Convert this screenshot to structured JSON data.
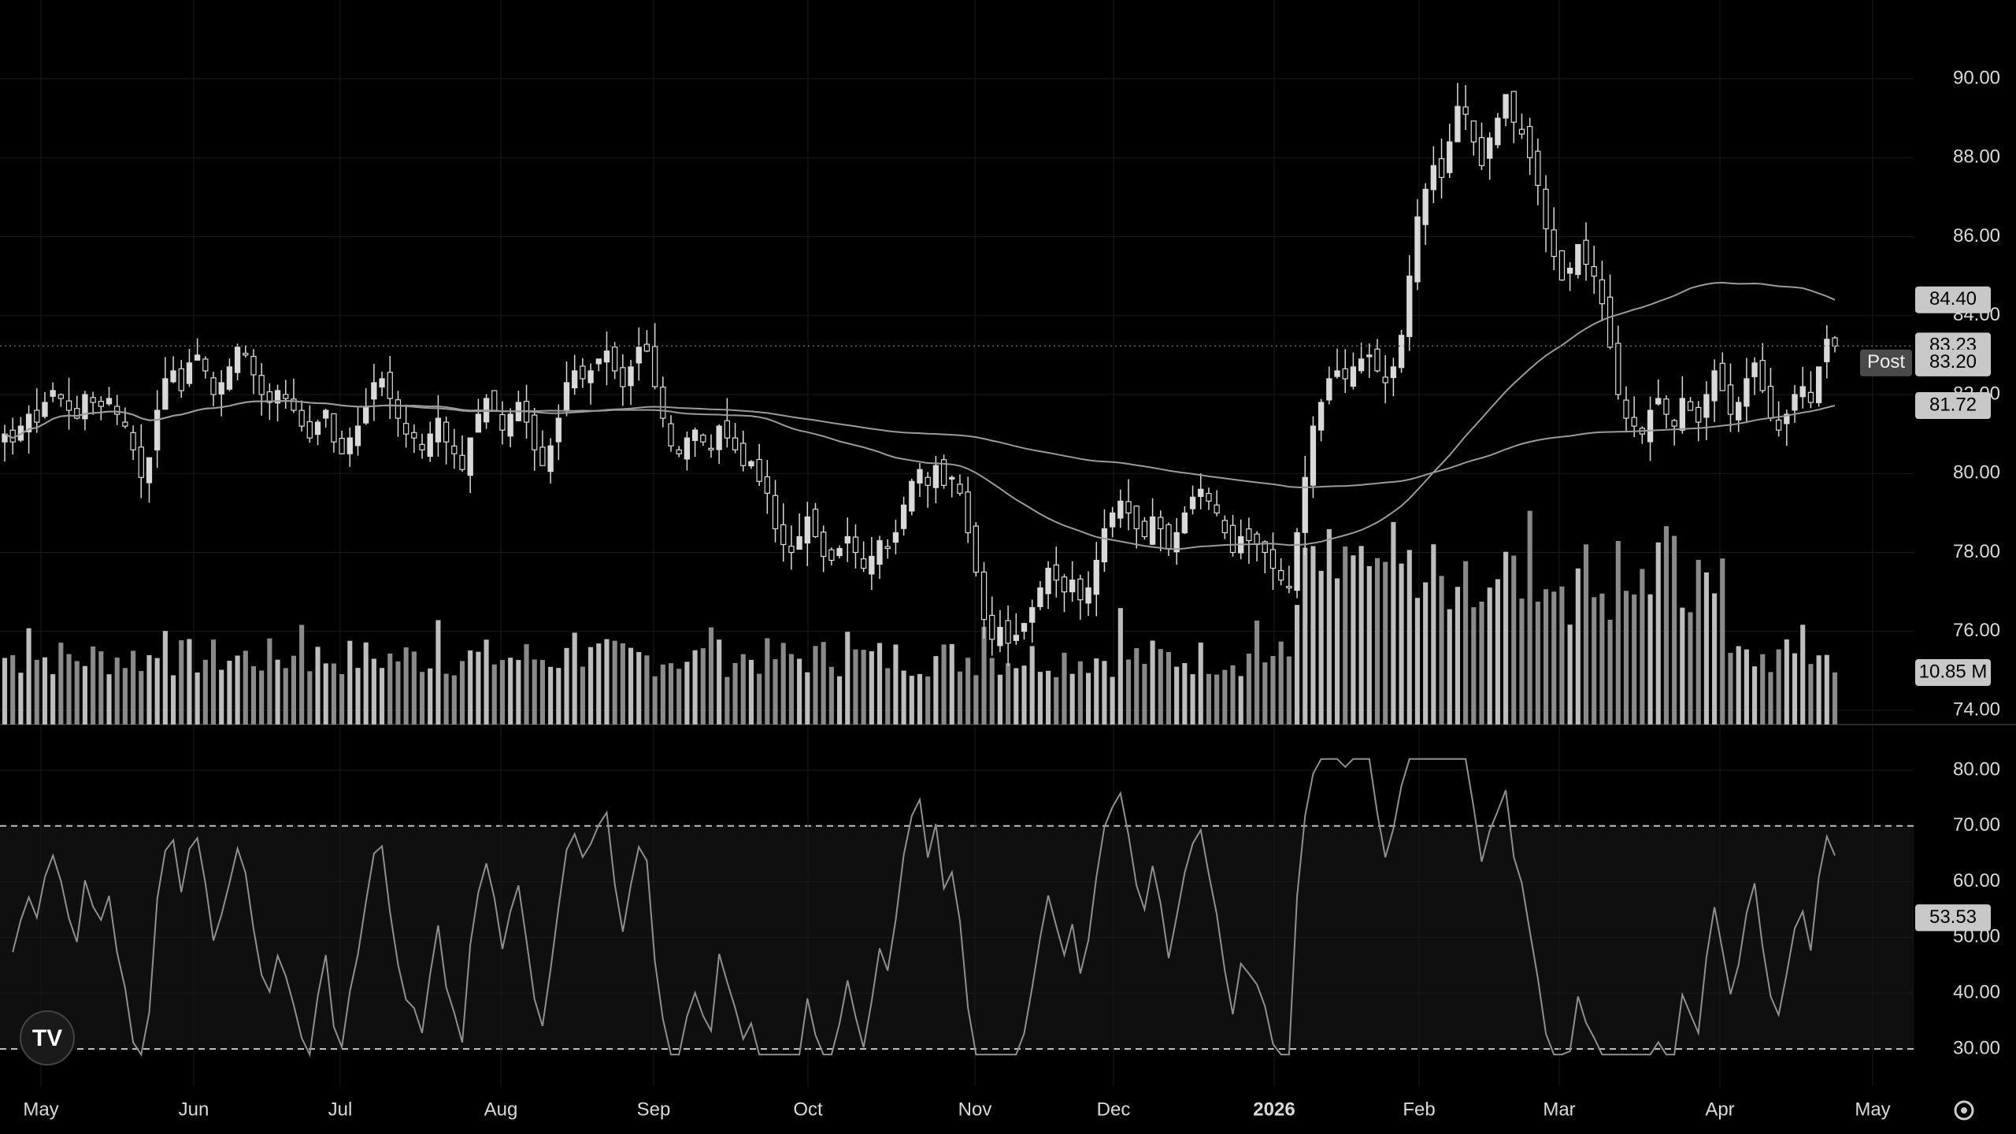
{
  "chart_data": [
    {
      "type": "candlestick",
      "title": "",
      "y_ticks": [
        "90.00",
        "88.00",
        "86.00",
        "84.00",
        "82.00",
        "80.00",
        "78.00",
        "76.00",
        "74.00"
      ],
      "ylim": [
        74,
        91.5
      ],
      "x_ticks": [
        {
          "label": "May",
          "bold": false
        },
        {
          "label": "Jun",
          "bold": false
        },
        {
          "label": "Jul",
          "bold": false
        },
        {
          "label": "Aug",
          "bold": false
        },
        {
          "label": "Sep",
          "bold": false
        },
        {
          "label": "Oct",
          "bold": false
        },
        {
          "label": "Nov",
          "bold": false
        },
        {
          "label": "Dec",
          "bold": false
        },
        {
          "label": "2026",
          "bold": true
        },
        {
          "label": "Feb",
          "bold": false
        },
        {
          "label": "Mar",
          "bold": false
        },
        {
          "label": "Apr",
          "bold": false
        },
        {
          "label": "May",
          "bold": false
        }
      ],
      "close_series": [
        81.0,
        80.8,
        81.2,
        81.5,
        81.3,
        81.8,
        82.1,
        81.9,
        81.6,
        81.4,
        82.0,
        81.8,
        81.7,
        81.9,
        81.5,
        81.2,
        80.6,
        79.9,
        80.4,
        81.6,
        82.4,
        82.6,
        82.1,
        82.8,
        83.0,
        82.6,
        82.0,
        82.3,
        82.7,
        83.2,
        83.0,
        82.5,
        82.0,
        81.8,
        82.1,
        81.9,
        81.6,
        81.2,
        80.9,
        81.3,
        81.6,
        80.8,
        80.5,
        80.9,
        81.2,
        81.7,
        82.3,
        82.4,
        81.9,
        81.4,
        81.0,
        80.9,
        80.6,
        81.0,
        81.4,
        80.8,
        80.5,
        80.1,
        80.9,
        81.5,
        81.9,
        81.6,
        81.1,
        81.5,
        81.8,
        81.3,
        80.6,
        80.2,
        80.7,
        81.4,
        82.3,
        82.6,
        82.4,
        82.6,
        82.9,
        83.1,
        82.6,
        82.2,
        82.7,
        83.2,
        83.1,
        82.2,
        81.4,
        80.7,
        80.5,
        80.9,
        81.1,
        80.8,
        80.6,
        81.2,
        80.9,
        80.6,
        80.2,
        80.3,
        79.8,
        79.5,
        78.6,
        78.2,
        78.0,
        78.4,
        78.9,
        78.4,
        77.9,
        77.8,
        78.1,
        78.4,
        78.0,
        77.6,
        77.9,
        78.3,
        78.1,
        78.5,
        79.2,
        79.8,
        80.1,
        79.7,
        80.2,
        79.7,
        79.9,
        79.5,
        78.5,
        77.5,
        76.3,
        75.8,
        76.1,
        75.7,
        75.9,
        76.2,
        76.6,
        77.1,
        77.6,
        77.3,
        77.0,
        77.3,
        76.8,
        77.1,
        77.8,
        78.6,
        79.0,
        79.3,
        79.0,
        78.6,
        78.4,
        78.9,
        78.6,
        78.1,
        78.5,
        79.0,
        79.4,
        79.6,
        79.3,
        79.0,
        78.5,
        78.0,
        78.4,
        78.3,
        78.2,
        78.0,
        77.6,
        77.3,
        77.1,
        78.5,
        79.9,
        81.2,
        81.8,
        82.4,
        82.6,
        82.4,
        82.7,
        82.9,
        83.0,
        82.6,
        82.3,
        82.7,
        83.5,
        85.0,
        86.5,
        87.2,
        87.8,
        87.5,
        88.4,
        89.3,
        89.1,
        88.4,
        87.8,
        88.5,
        89.0,
        89.6,
        88.9,
        88.6,
        88.0,
        87.3,
        86.2,
        85.5,
        84.9,
        85.2,
        85.8,
        85.3,
        85.0,
        84.3,
        83.2,
        82.0,
        81.4,
        81.2,
        81.0,
        81.6,
        81.9,
        81.5,
        81.2,
        81.9,
        81.6,
        81.3,
        82.0,
        82.6,
        82.1,
        81.5,
        81.8,
        82.4,
        82.8,
        82.1,
        81.4,
        81.1,
        81.5,
        82.0,
        82.2,
        81.8,
        82.7,
        83.4,
        83.23
      ],
      "ma_fast_end": 84.4,
      "ma_slow_end": 81.72,
      "last_price": "83.23",
      "post_price": "83.20",
      "post_label": "Post",
      "ma_fast_label": "84.40",
      "ma_slow_label": "81.72",
      "volume_label": "10.85 M",
      "volume_note": "volume bars overlaid at bottom of price pane (no scale shown)"
    },
    {
      "type": "line",
      "title": "",
      "indicator": "RSI",
      "y_ticks": [
        "80.00",
        "70.00",
        "60.00",
        "50.00",
        "40.00",
        "30.00"
      ],
      "ylim": [
        28,
        83
      ],
      "overbought": 70,
      "oversold": 30,
      "last_value_label": "53.53"
    }
  ],
  "colors": {
    "background": "#000000",
    "up_candle": "#d9d9d9",
    "down_candle": "#d9d9d9",
    "ma_line": "#9a9a9a",
    "grid": "#1a1a1a",
    "badge_bg": "#c8c8c8",
    "rsi_band": "#0f0f0f"
  },
  "logo_text": "TV",
  "settings_icon": "gear-icon"
}
